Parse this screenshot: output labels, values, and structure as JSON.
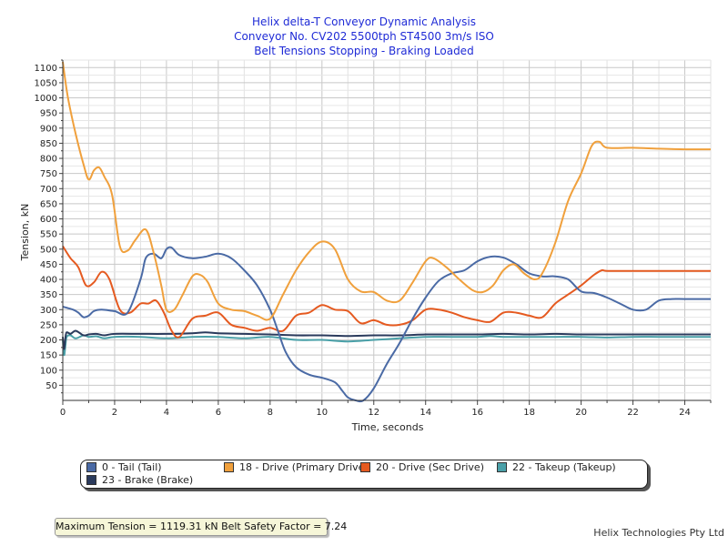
{
  "chart_data": {
    "type": "line",
    "title": "Helix delta-T Conveyor Dynamic Analysis",
    "subtitle_1": "Conveyor No. CV202 5500tph ST4500 3m/s ISO",
    "subtitle_2": "Belt Tensions Stopping - Braking Loaded",
    "xlabel": "Time, seconds",
    "ylabel": "Tension, kN",
    "xlim": [
      0,
      25
    ],
    "ylim": [
      0,
      1125
    ],
    "xticks": [
      0,
      2,
      4,
      6,
      8,
      10,
      12,
      14,
      16,
      18,
      20,
      22,
      24
    ],
    "yticks": [
      50,
      100,
      150,
      200,
      250,
      300,
      350,
      400,
      450,
      500,
      550,
      600,
      650,
      700,
      750,
      800,
      850,
      900,
      950,
      1000,
      1050,
      1100
    ],
    "grid": true,
    "legend_position": "bottom",
    "series": [
      {
        "name": "0 - Tail (Tail)",
        "color": "#4a6aa5",
        "x": [
          0,
          0.4,
          0.6,
          0.8,
          1,
          1.2,
          1.5,
          2,
          2.5,
          3,
          3.2,
          3.5,
          3.8,
          4,
          4.2,
          4.5,
          5,
          5.5,
          6,
          6.5,
          7,
          7.5,
          8,
          8.3,
          8.6,
          9,
          9.5,
          10,
          10.5,
          10.8,
          11,
          11.3,
          11.6,
          12,
          12.5,
          13,
          13.5,
          14,
          14.5,
          15,
          15.5,
          16,
          16.5,
          17,
          17.5,
          18,
          18.5,
          19,
          19.5,
          20,
          20.5,
          21,
          21.5,
          22,
          22.5,
          23,
          23.5,
          24,
          25
        ],
        "values": [
          310,
          300,
          290,
          275,
          280,
          295,
          300,
          295,
          290,
          400,
          470,
          485,
          470,
          500,
          505,
          480,
          470,
          475,
          485,
          470,
          430,
          380,
          300,
          230,
          160,
          110,
          85,
          75,
          60,
          30,
          10,
          0,
          0,
          40,
          120,
          190,
          270,
          340,
          395,
          420,
          430,
          460,
          475,
          472,
          450,
          420,
          410,
          410,
          400,
          360,
          355,
          340,
          320,
          300,
          300,
          330,
          335,
          335,
          335
        ]
      },
      {
        "name": "18 - Drive (Primary Drive)",
        "color": "#f0a03c",
        "x": [
          0,
          0.2,
          0.5,
          0.8,
          1,
          1.2,
          1.4,
          1.6,
          1.9,
          2.2,
          2.5,
          2.8,
          3.2,
          3.5,
          3.8,
          4,
          4.3,
          4.6,
          5,
          5.3,
          5.6,
          6,
          6.5,
          7,
          7.5,
          8,
          8.5,
          9,
          9.5,
          10,
          10.5,
          11,
          11.5,
          12,
          12.5,
          13,
          13.5,
          14,
          14.3,
          14.8,
          15.3,
          15.8,
          16.2,
          16.6,
          17,
          17.4,
          17.8,
          18.2,
          18.5,
          19,
          19.5,
          20,
          20.4,
          20.7,
          21,
          22,
          23,
          24,
          25
        ],
        "values": [
          1119,
          1000,
          880,
          780,
          730,
          760,
          770,
          740,
          680,
          510,
          495,
          530,
          565,
          490,
          380,
          300,
          300,
          345,
          410,
          415,
          390,
          320,
          300,
          295,
          280,
          270,
          350,
          430,
          490,
          525,
          500,
          400,
          360,
          358,
          330,
          330,
          390,
          460,
          470,
          440,
          400,
          365,
          358,
          380,
          430,
          450,
          420,
          400,
          420,
          520,
          660,
          750,
          840,
          855,
          835,
          835,
          832,
          830,
          830
        ]
      },
      {
        "name": "20 - Drive (Sec Drive)",
        "color": "#e55a20",
        "x": [
          0,
          0.3,
          0.6,
          0.9,
          1.2,
          1.5,
          1.8,
          2.2,
          2.6,
          3,
          3.3,
          3.6,
          3.9,
          4.2,
          4.5,
          5,
          5.5,
          6,
          6.5,
          7,
          7.5,
          8,
          8.5,
          9,
          9.5,
          10,
          10.5,
          11,
          11.5,
          12,
          12.5,
          13,
          13.5,
          14,
          14.5,
          15,
          15.5,
          16,
          16.5,
          17,
          17.5,
          18,
          18.5,
          19,
          19.5,
          20,
          20.5,
          20.8,
          21,
          22,
          23,
          24,
          25
        ],
        "values": [
          510,
          470,
          440,
          380,
          390,
          425,
          400,
          300,
          290,
          320,
          320,
          330,
          290,
          230,
          210,
          270,
          280,
          290,
          250,
          240,
          230,
          240,
          230,
          280,
          290,
          315,
          300,
          295,
          255,
          265,
          250,
          250,
          265,
          300,
          300,
          290,
          275,
          265,
          260,
          290,
          290,
          280,
          275,
          320,
          350,
          380,
          415,
          430,
          428,
          428,
          428,
          428,
          428
        ]
      },
      {
        "name": "22 - Takeup (Takeup)",
        "color": "#4aa0a8",
        "x": [
          0,
          0.05,
          0.1,
          0.15,
          0.3,
          0.5,
          0.8,
          1,
          1.3,
          1.6,
          2,
          3,
          4,
          5,
          6,
          7,
          8,
          9,
          10,
          11,
          12,
          13,
          14,
          15,
          16,
          16.5,
          17,
          18,
          19,
          20,
          21,
          22,
          23,
          24,
          25
        ],
        "values": [
          200,
          150,
          180,
          210,
          215,
          205,
          215,
          210,
          212,
          205,
          210,
          210,
          205,
          210,
          210,
          205,
          210,
          200,
          200,
          195,
          200,
          205,
          210,
          210,
          210,
          213,
          210,
          210,
          210,
          210,
          208,
          210,
          210,
          210,
          210
        ]
      },
      {
        "name": "23 - Brake (Brake)",
        "color": "#2a3a5c",
        "x": [
          0,
          0.05,
          0.1,
          0.15,
          0.3,
          0.5,
          0.8,
          1,
          1.3,
          1.6,
          2,
          3,
          4,
          5,
          5.5,
          6,
          7,
          8,
          9,
          10,
          11,
          12,
          13,
          14,
          15,
          16,
          17,
          18,
          19,
          20,
          21,
          22,
          23,
          24,
          25
        ],
        "values": [
          210,
          170,
          205,
          225,
          220,
          230,
          215,
          218,
          220,
          215,
          220,
          220,
          220,
          222,
          225,
          222,
          220,
          218,
          215,
          215,
          213,
          215,
          215,
          218,
          218,
          218,
          220,
          218,
          220,
          218,
          218,
          218,
          218,
          218,
          218
        ]
      }
    ]
  },
  "status_text": "Maximum Tension = 1119.31 kN Belt Safety Factor = 7.24",
  "credit": "Helix Technologies Pty Ltd"
}
